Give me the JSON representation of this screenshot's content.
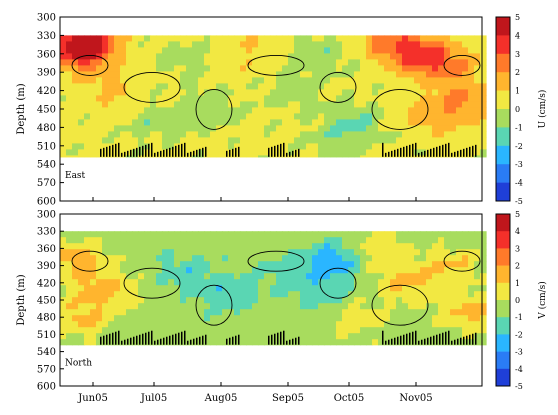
{
  "chart_data": [
    {
      "type": "heatmap",
      "panel_label": "East",
      "ylabel": "Depth (m)",
      "colorbar_label": "U (cm/s)",
      "ylim": [
        600,
        300
      ],
      "yticks": [
        300,
        330,
        360,
        390,
        420,
        450,
        480,
        510,
        540,
        570,
        600
      ],
      "xtick_labels": [
        "Jun05",
        "Jul05",
        "Aug05",
        "Sep05",
        "Oct05",
        "Nov05"
      ],
      "colorbar_range": [
        -5,
        5
      ],
      "colorbar_ticks": [
        5,
        4,
        3,
        2,
        1,
        0,
        -1,
        -2,
        -3,
        -4,
        -5
      ],
      "data_depth_range": [
        330,
        528
      ],
      "mean_value": 0.3,
      "blobs": [
        {
          "t": 0.06,
          "z": 340,
          "v": 3.8
        },
        {
          "t": 0.05,
          "z": 360,
          "v": 2.6
        },
        {
          "t": 0.12,
          "z": 420,
          "v": 1.2
        },
        {
          "t": 0.22,
          "z": 470,
          "v": -0.6
        },
        {
          "t": 0.3,
          "z": 370,
          "v": -0.5
        },
        {
          "t": 0.35,
          "z": 450,
          "v": -0.8
        },
        {
          "t": 0.45,
          "z": 360,
          "v": 1.0
        },
        {
          "t": 0.55,
          "z": 420,
          "v": -0.6
        },
        {
          "t": 0.62,
          "z": 360,
          "v": -0.7
        },
        {
          "t": 0.7,
          "z": 470,
          "v": -1.0
        },
        {
          "t": 0.78,
          "z": 340,
          "v": 2.2
        },
        {
          "t": 0.85,
          "z": 360,
          "v": 2.8
        },
        {
          "t": 0.92,
          "z": 380,
          "v": 2.2
        },
        {
          "t": 0.88,
          "z": 460,
          "v": 1.6
        },
        {
          "t": 0.97,
          "z": 440,
          "v": 2.0
        },
        {
          "t": 0.66,
          "z": 500,
          "v": -0.5
        }
      ]
    },
    {
      "type": "heatmap",
      "panel_label": "North",
      "ylabel": "Depth (m)",
      "colorbar_label": "V (cm/s)",
      "ylim": [
        600,
        300
      ],
      "yticks": [
        300,
        330,
        360,
        390,
        420,
        450,
        480,
        510,
        540,
        570,
        600
      ],
      "xtick_labels": [
        "Jun05",
        "Jul05",
        "Aug05",
        "Sep05",
        "Oct05",
        "Nov05"
      ],
      "colorbar_range": [
        -5,
        5
      ],
      "colorbar_ticks": [
        5,
        4,
        3,
        2,
        1,
        0,
        -1,
        -2,
        -3,
        -4,
        -5
      ],
      "data_depth_range": [
        330,
        528
      ],
      "mean_value": -0.5,
      "blobs": [
        {
          "t": 0.04,
          "z": 380,
          "v": 1.6
        },
        {
          "t": 0.1,
          "z": 430,
          "v": 1.4
        },
        {
          "t": 0.05,
          "z": 480,
          "v": 1.2
        },
        {
          "t": 0.3,
          "z": 400,
          "v": -1.6
        },
        {
          "t": 0.4,
          "z": 440,
          "v": -1.8
        },
        {
          "t": 0.55,
          "z": 400,
          "v": -1.4
        },
        {
          "t": 0.65,
          "z": 380,
          "v": -2.6
        },
        {
          "t": 0.62,
          "z": 440,
          "v": -1.6
        },
        {
          "t": 0.75,
          "z": 360,
          "v": 0.8
        },
        {
          "t": 0.82,
          "z": 420,
          "v": 1.3
        },
        {
          "t": 0.93,
          "z": 390,
          "v": 1.0
        },
        {
          "t": 0.97,
          "z": 470,
          "v": 1.4
        },
        {
          "t": 0.7,
          "z": 480,
          "v": 0.6
        }
      ]
    }
  ]
}
